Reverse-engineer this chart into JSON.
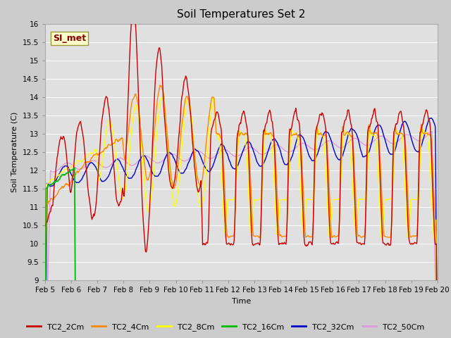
{
  "title": "Soil Temperatures Set 2",
  "xlabel": "Time",
  "ylabel": "Soil Temperature (C)",
  "ylim": [
    9.0,
    16.0
  ],
  "yticks": [
    9.0,
    9.5,
    10.0,
    10.5,
    11.0,
    11.5,
    12.0,
    12.5,
    13.0,
    13.5,
    14.0,
    14.5,
    15.0,
    15.5,
    16.0
  ],
  "xtick_labels": [
    "Feb 5",
    "Feb 6",
    "Feb 7",
    "Feb 8",
    "Feb 9",
    "Feb 10",
    "Feb 11",
    "Feb 12",
    "Feb 13",
    "Feb 14",
    "Feb 15",
    "Feb 16",
    "Feb 17",
    "Feb 18",
    "Feb 19",
    "Feb 20"
  ],
  "series_colors": {
    "TC2_2Cm": "#cc0000",
    "TC2_4Cm": "#ff8800",
    "TC2_8Cm": "#ffff00",
    "TC2_16Cm": "#00bb00",
    "TC2_32Cm": "#0000cc",
    "TC2_50Cm": "#dd99dd"
  },
  "legend_label": "SI_met",
  "legend_box_facecolor": "#ffffcc",
  "legend_box_edgecolor": "#999933",
  "legend_text_color": "#880000",
  "fig_facecolor": "#cccccc",
  "plot_facecolor": "#e0e0e0",
  "grid_color": "#ffffff",
  "title_fontsize": 11,
  "axis_label_fontsize": 8,
  "tick_fontsize": 7.5,
  "legend_fontsize": 8
}
